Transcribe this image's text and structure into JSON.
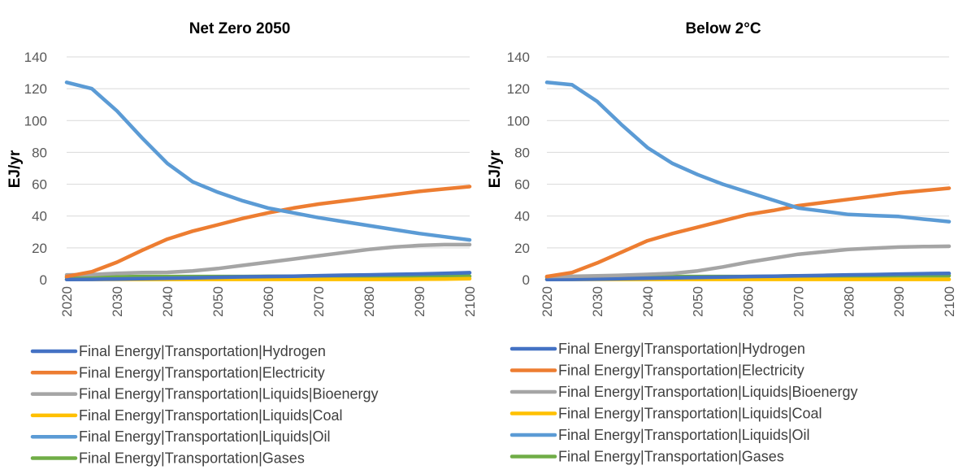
{
  "chart_data": [
    {
      "type": "line",
      "title": "Net Zero 2050",
      "xlabel": "",
      "ylabel": "EJ/yr",
      "ylim": [
        0,
        140
      ],
      "yticks": [
        0,
        20,
        40,
        60,
        80,
        100,
        120,
        140
      ],
      "xticks": [
        2020,
        2030,
        2040,
        2050,
        2060,
        2070,
        2080,
        2090,
        2100
      ],
      "x": [
        2020,
        2025,
        2030,
        2035,
        2040,
        2045,
        2050,
        2055,
        2060,
        2065,
        2070,
        2075,
        2080,
        2085,
        2090,
        2095,
        2100
      ],
      "grid": true,
      "legend": "bottom",
      "series": [
        {
          "name": "Final Energy|Transportation|Hydrogen",
          "color": "#4472C4",
          "values": [
            0.1,
            0.2,
            0.4,
            0.6,
            0.9,
            1.2,
            1.5,
            1.8,
            2.0,
            2.2,
            2.5,
            2.8,
            3.0,
            3.3,
            3.6,
            4.0,
            4.4
          ]
        },
        {
          "name": "Final Energy|Transportation|Electricity",
          "color": "#ED7D31",
          "values": [
            2,
            5,
            11,
            18.5,
            25.5,
            30.5,
            34.5,
            38.5,
            42,
            45,
            47.5,
            49.5,
            51.5,
            53.5,
            55.5,
            57,
            58.5
          ]
        },
        {
          "name": "Final Energy|Transportation|Liquids|Bioenergy",
          "color": "#A5A5A5",
          "values": [
            3,
            3.2,
            4,
            4.5,
            4.6,
            5.5,
            7,
            9,
            11,
            13,
            15,
            17,
            19,
            20.5,
            21.5,
            22,
            22
          ]
        },
        {
          "name": "Final Energy|Transportation|Liquids|Coal",
          "color": "#FFC000",
          "values": [
            0.2,
            0.2,
            0.2,
            0.2,
            0.2,
            0.2,
            0.2,
            0.2,
            0.2,
            0.2,
            0.2,
            0.2,
            0.2,
            0.2,
            0.3,
            0.4,
            0.6
          ]
        },
        {
          "name": "Final Energy|Transportation|Liquids|Oil",
          "color": "#5B9BD5",
          "values": [
            124,
            120,
            106,
            89,
            73,
            61.5,
            55,
            49.5,
            45,
            42,
            39,
            36.5,
            34,
            31.5,
            29,
            27,
            25
          ]
        },
        {
          "name": "Final Energy|Transportation|Gases",
          "color": "#70AD47",
          "values": [
            1.5,
            1.5,
            1.8,
            2,
            2,
            2,
            2,
            2,
            2.1,
            2.1,
            2.1,
            2.1,
            2.1,
            2.1,
            2.2,
            2.2,
            2.2
          ]
        }
      ]
    },
    {
      "type": "line",
      "title": "Below 2°C",
      "xlabel": "",
      "ylabel": "EJ/yr",
      "ylim": [
        0,
        140
      ],
      "yticks": [
        0,
        20,
        40,
        60,
        80,
        100,
        120,
        140
      ],
      "xticks": [
        2020,
        2030,
        2040,
        2050,
        2060,
        2070,
        2080,
        2090,
        2100
      ],
      "x": [
        2020,
        2025,
        2030,
        2035,
        2040,
        2045,
        2050,
        2055,
        2060,
        2065,
        2070,
        2075,
        2080,
        2085,
        2090,
        2095,
        2100
      ],
      "grid": true,
      "legend": "bottom",
      "series": [
        {
          "name": "Final Energy|Transportation|Hydrogen",
          "color": "#4472C4",
          "values": [
            0.1,
            0.2,
            0.4,
            0.6,
            0.9,
            1.1,
            1.4,
            1.7,
            2.0,
            2.2,
            2.4,
            2.7,
            3.0,
            3.2,
            3.5,
            3.8,
            4.0
          ]
        },
        {
          "name": "Final Energy|Transportation|Electricity",
          "color": "#ED7D31",
          "values": [
            2,
            4.5,
            10.5,
            17.5,
            24.5,
            29,
            33,
            37,
            41,
            43.5,
            46.5,
            48.5,
            50.5,
            52.5,
            54.5,
            56,
            57.5
          ]
        },
        {
          "name": "Final Energy|Transportation|Liquids|Bioenergy",
          "color": "#A5A5A5",
          "values": [
            2,
            2.1,
            2.4,
            2.8,
            3.3,
            4,
            5.5,
            8,
            11,
            13.5,
            16,
            17.5,
            19,
            19.8,
            20.5,
            20.8,
            21
          ]
        },
        {
          "name": "Final Energy|Transportation|Liquids|Coal",
          "color": "#FFC000",
          "values": [
            0.2,
            0.2,
            0.2,
            0.2,
            0.2,
            0.2,
            0.2,
            0.2,
            0.2,
            0.2,
            0.2,
            0.2,
            0.2,
            0.2,
            0.2,
            0.2,
            0.2
          ]
        },
        {
          "name": "Final Energy|Transportation|Liquids|Oil",
          "color": "#5B9BD5",
          "values": [
            124,
            122.5,
            112,
            97,
            83,
            73,
            66,
            60,
            55,
            50,
            45,
            43,
            41,
            40.3,
            39.7,
            38,
            36.5
          ]
        },
        {
          "name": "Final Energy|Transportation|Gases",
          "color": "#70AD47",
          "values": [
            1.5,
            1.6,
            1.8,
            1.9,
            2,
            2,
            2,
            2,
            2,
            2.1,
            2.4,
            2.4,
            2.4,
            2.4,
            2.5,
            2.5,
            2.5
          ]
        }
      ]
    }
  ]
}
